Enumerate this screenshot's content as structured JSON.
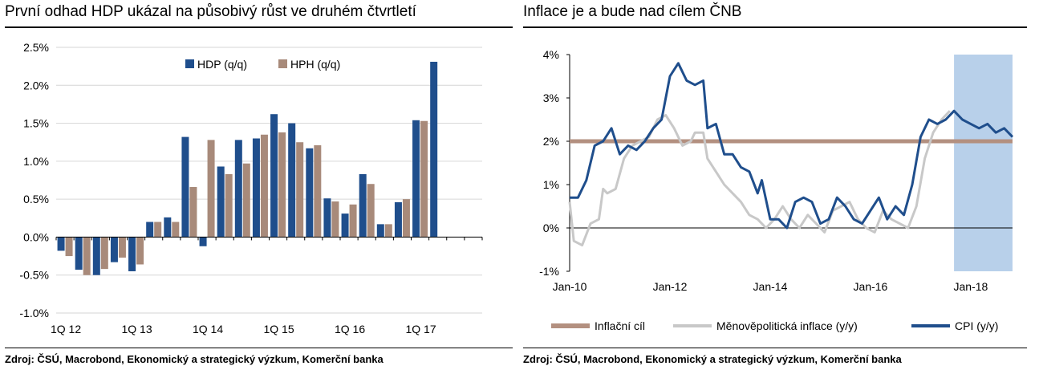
{
  "left": {
    "title": "První odhad HDP ukázal na působivý růst ve druhém čtvrtletí",
    "source": "Zdroj: ČSÚ, Macrobond, Ekonomický a strategický výzkum, Komerční banka"
  },
  "right": {
    "title": "Inflace je a bude nad cílem ČNB",
    "source": "Zdroj: ČSÚ, Macrobond, Ekonomický a strategický výzkum, Komerční banka"
  },
  "colors": {
    "navy": "#1f4e8c",
    "tan": "#a88a7a",
    "lightgray": "#c8c8c8",
    "forecast": "#b8d0ea",
    "target": "#b39080"
  },
  "chart_data": [
    {
      "type": "bar",
      "title": "První odhad HDP ukázal na působivý růst ve druhém čtvrtletí",
      "categories": [
        "1Q 12",
        "2Q 12",
        "3Q 12",
        "4Q 12",
        "1Q 13",
        "2Q 13",
        "3Q 13",
        "4Q 13",
        "1Q 14",
        "2Q 14",
        "3Q 14",
        "4Q 14",
        "1Q 15",
        "2Q 15",
        "3Q 15",
        "4Q 15",
        "1Q 16",
        "2Q 16",
        "3Q 16",
        "4Q 16",
        "1Q 17",
        "2Q 17",
        "3Q 17",
        "4Q 17"
      ],
      "tick_labels": [
        "1Q 12",
        "1Q 13",
        "1Q 14",
        "1Q 15",
        "1Q 16",
        "1Q 17"
      ],
      "series": [
        {
          "name": "HDP (q/q)",
          "color": "#1f4e8c",
          "values": [
            -0.18,
            -0.43,
            -0.5,
            -0.33,
            -0.45,
            0.2,
            0.26,
            1.32,
            -0.12,
            0.93,
            1.28,
            1.3,
            1.62,
            1.5,
            1.17,
            0.51,
            0.31,
            0.83,
            0.17,
            0.46,
            1.54,
            2.31,
            null,
            null
          ]
        },
        {
          "name": "HPH (q/q)",
          "color": "#a88a7a",
          "values": [
            -0.25,
            -0.5,
            -0.42,
            -0.27,
            -0.36,
            0.2,
            0.2,
            0.66,
            1.28,
            0.83,
            0.97,
            1.35,
            1.38,
            1.25,
            1.21,
            0.47,
            0.43,
            0.7,
            0.17,
            0.5,
            1.53,
            null,
            null,
            null
          ]
        }
      ],
      "ylim": [
        -1.0,
        2.5
      ],
      "yticks": [
        "-1.0%",
        "-0.5%",
        "0.0%",
        "0.5%",
        "1.0%",
        "1.5%",
        "2.0%",
        "2.5%"
      ],
      "grid": true,
      "legend": "top-center"
    },
    {
      "type": "line",
      "title": "Inflace je a bude nad cílem ČNB",
      "xlim": [
        "2010-01",
        "2018-11"
      ],
      "xticks": [
        "Jan-10",
        "Jan-12",
        "Jan-14",
        "Jan-16",
        "Jan-18"
      ],
      "ylim": [
        -1,
        4
      ],
      "yticks": [
        "-1%",
        "0%",
        "1%",
        "2%",
        "3%",
        "4%"
      ],
      "forecast_shading": {
        "from": "2017-09",
        "to": "2018-11",
        "color": "#b8d0ea"
      },
      "grid": false,
      "legend": "bottom",
      "series": [
        {
          "name": "Inflační cíl",
          "color": "#b39080",
          "x": [
            "2010-01",
            "2018-11"
          ],
          "y": [
            2.0,
            2.0
          ]
        },
        {
          "name": "Měnověpolitická inflace (y/y)",
          "color": "#c8c8c8",
          "x": [
            "2010-01",
            "2010-02",
            "2010-04",
            "2010-06",
            "2010-08",
            "2010-09",
            "2010-10",
            "2010-12",
            "2011-02",
            "2011-04",
            "2011-06",
            "2011-08",
            "2011-10",
            "2011-12",
            "2012-02",
            "2012-04",
            "2012-06",
            "2012-07",
            "2012-09",
            "2012-10",
            "2012-12",
            "2013-02",
            "2013-04",
            "2013-06",
            "2013-08",
            "2013-10",
            "2013-12",
            "2014-02",
            "2014-04",
            "2014-06",
            "2014-08",
            "2014-10",
            "2014-12",
            "2015-02",
            "2015-04",
            "2015-06",
            "2015-08",
            "2015-10",
            "2015-12",
            "2016-02",
            "2016-04",
            "2016-06",
            "2016-08",
            "2016-10",
            "2016-12",
            "2017-02",
            "2017-04",
            "2017-06",
            "2017-08"
          ],
          "y": [
            0.6,
            -0.3,
            -0.4,
            0.1,
            0.2,
            0.9,
            0.8,
            0.9,
            1.6,
            1.9,
            2.0,
            2.1,
            2.5,
            2.6,
            2.3,
            1.9,
            2.0,
            2.2,
            2.2,
            1.6,
            1.3,
            1.0,
            0.8,
            0.6,
            0.3,
            0.2,
            0.0,
            0.2,
            0.5,
            0.2,
            0.0,
            0.3,
            0.1,
            -0.1,
            0.4,
            0.5,
            0.6,
            0.2,
            0.0,
            -0.1,
            0.4,
            0.2,
            0.1,
            0.0,
            0.5,
            1.6,
            2.2,
            2.5,
            2.7
          ]
        },
        {
          "name": "CPI (y/y)",
          "color": "#1f4e8c",
          "x": [
            "2010-01",
            "2010-03",
            "2010-05",
            "2010-07",
            "2010-09",
            "2010-11",
            "2011-01",
            "2011-03",
            "2011-05",
            "2011-07",
            "2011-09",
            "2011-11",
            "2012-01",
            "2012-03",
            "2012-05",
            "2012-07",
            "2012-09",
            "2012-10",
            "2012-12",
            "2013-02",
            "2013-04",
            "2013-06",
            "2013-08",
            "2013-10",
            "2013-11",
            "2014-01",
            "2014-03",
            "2014-05",
            "2014-07",
            "2014-09",
            "2014-11",
            "2015-01",
            "2015-03",
            "2015-05",
            "2015-07",
            "2015-09",
            "2015-11",
            "2016-01",
            "2016-03",
            "2016-05",
            "2016-07",
            "2016-09",
            "2016-11",
            "2017-01",
            "2017-03",
            "2017-05",
            "2017-07",
            "2017-09",
            "2017-11",
            "2018-01",
            "2018-03",
            "2018-05",
            "2018-07",
            "2018-09",
            "2018-11"
          ],
          "y": [
            0.7,
            0.7,
            1.1,
            1.9,
            2.0,
            2.3,
            1.7,
            1.9,
            1.8,
            2.0,
            2.3,
            2.5,
            3.5,
            3.8,
            3.4,
            3.3,
            3.4,
            2.3,
            2.4,
            1.7,
            1.7,
            1.4,
            1.3,
            0.8,
            1.1,
            0.2,
            0.2,
            0.0,
            0.6,
            0.7,
            0.6,
            0.1,
            0.2,
            0.7,
            0.5,
            0.2,
            0.1,
            0.4,
            0.7,
            0.2,
            0.5,
            0.3,
            1.0,
            2.1,
            2.5,
            2.4,
            2.5,
            2.7,
            2.5,
            2.4,
            2.3,
            2.4,
            2.2,
            2.3,
            2.1
          ]
        }
      ]
    }
  ]
}
